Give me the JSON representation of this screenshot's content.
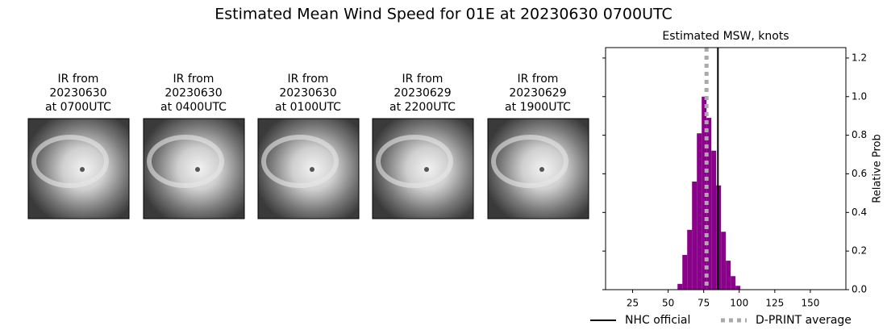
{
  "title": "Estimated Mean Wind Speed for 01E at 20230630 0700UTC",
  "panels": [
    {
      "lines": [
        "IR from",
        "20230630",
        "at 0700UTC"
      ]
    },
    {
      "lines": [
        "IR from",
        "20230630",
        "at 0400UTC"
      ]
    },
    {
      "lines": [
        "IR from",
        "20230630",
        "at 0100UTC"
      ]
    },
    {
      "lines": [
        "IR from",
        "20230629",
        "at 2200UTC"
      ]
    },
    {
      "lines": [
        "IR from",
        "20230629",
        "at 1900UTC"
      ]
    }
  ],
  "chart_data": {
    "type": "histogram",
    "title": "Estimated MSW, knots",
    "y_label": "Relative Prob",
    "color": "#8b008b",
    "bins": [
      56.6,
      60,
      63.4,
      66.8,
      70.2,
      73.6,
      77,
      80.4,
      83.8,
      87.2,
      90.6,
      94,
      97.4,
      100.8
    ],
    "values": [
      0.03,
      0.18,
      0.31,
      0.56,
      0.81,
      1.0,
      0.89,
      0.72,
      0.54,
      0.3,
      0.15,
      0.07,
      0.02
    ],
    "xlim": [
      6,
      175
    ],
    "ylim": [
      0,
      1.254
    ],
    "xticks": [
      25,
      50,
      75,
      100,
      125,
      150
    ],
    "yticks": [
      {
        "value": 0,
        "label": "0.0"
      },
      {
        "value": 0.2,
        "label": "0.2"
      },
      {
        "value": 0.4,
        "label": "0.4"
      },
      {
        "value": 0.6,
        "label": "0.6"
      },
      {
        "value": 0.8,
        "label": "0.8"
      },
      {
        "value": 1.0,
        "label": "1.0"
      },
      {
        "value": 1.2,
        "label": "1.2"
      }
    ],
    "reference_lines": [
      {
        "name": "NHC official",
        "value": 85,
        "color": "#000000",
        "style": "solid"
      },
      {
        "name": "D-PRINT average",
        "value": 77,
        "color": "#aaaaaa",
        "style": "dotted"
      }
    ]
  }
}
